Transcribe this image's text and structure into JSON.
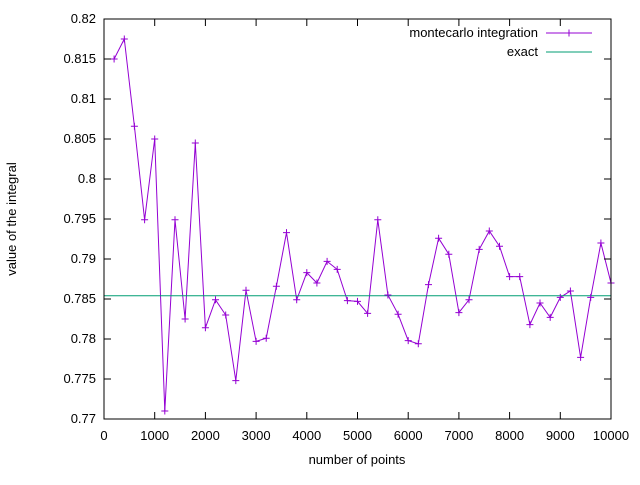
{
  "figure": {
    "background": "#ffffff",
    "border_color": "#000000",
    "xlabel": "number of points",
    "ylabel": "value of the integral"
  },
  "legend": {
    "position": "top-right-inside",
    "entries": [
      {
        "label": "montecarlo integration",
        "color": "#9400d3",
        "marker": "plus"
      },
      {
        "label": "exact",
        "color": "#009e73",
        "marker": "none"
      }
    ]
  },
  "chart_data": {
    "type": "line",
    "title": "",
    "xlabel": "number of points",
    "ylabel": "value of the integral",
    "xlim": [
      0,
      10000
    ],
    "ylim": [
      0.77,
      0.82
    ],
    "grid": false,
    "tick_style": "inward-mirrored",
    "legend_position": "top-right-inside",
    "xticks": {
      "values": [
        0,
        1000,
        2000,
        3000,
        4000,
        5000,
        6000,
        7000,
        8000,
        9000,
        10000
      ],
      "labels": [
        "0",
        "1000",
        "2000",
        "3000",
        "4000",
        "5000",
        "6000",
        "7000",
        "8000",
        "9000",
        "10000"
      ]
    },
    "yticks": {
      "values": [
        0.77,
        0.775,
        0.78,
        0.785,
        0.79,
        0.795,
        0.8,
        0.805,
        0.81,
        0.815,
        0.82
      ],
      "labels": [
        "0.77",
        "0.775",
        "0.78",
        "0.785",
        "0.79",
        "0.795",
        "0.8",
        "0.805",
        "0.81",
        "0.815",
        "0.82"
      ]
    },
    "series": [
      {
        "name": "montecarlo integration",
        "style": "linespoints",
        "color": "#9400d3",
        "marker": "plus",
        "x": [
          200,
          400,
          600,
          800,
          1000,
          1200,
          1400,
          1600,
          1800,
          2000,
          2200,
          2400,
          2600,
          2800,
          3000,
          3200,
          3400,
          3600,
          3800,
          4000,
          4200,
          4400,
          4600,
          4800,
          5000,
          5200,
          5400,
          5600,
          5800,
          6000,
          6200,
          6400,
          6600,
          6800,
          7000,
          7200,
          7400,
          7600,
          7800,
          8000,
          8200,
          8400,
          8600,
          8800,
          9000,
          9200,
          9400,
          9600,
          9800,
          10000
        ],
        "y": [
          0.815,
          0.8175,
          0.8066,
          0.7949,
          0.805,
          0.771,
          0.7949,
          0.7825,
          0.8045,
          0.7814,
          0.7849,
          0.783,
          0.7748,
          0.7861,
          0.7797,
          0.7801,
          0.7866,
          0.7933,
          0.7849,
          0.7883,
          0.787,
          0.7897,
          0.7887,
          0.7848,
          0.7847,
          0.7832,
          0.7949,
          0.7855,
          0.7831,
          0.7798,
          0.7794,
          0.7868,
          0.7926,
          0.7906,
          0.7833,
          0.7849,
          0.7912,
          0.7935,
          0.7916,
          0.7878,
          0.7878,
          0.7818,
          0.7845,
          0.7827,
          0.7852,
          0.786,
          0.7777,
          0.7852,
          0.792,
          0.787
        ]
      },
      {
        "name": "exact",
        "style": "hline",
        "color": "#009e73",
        "value": 0.7854
      }
    ]
  }
}
